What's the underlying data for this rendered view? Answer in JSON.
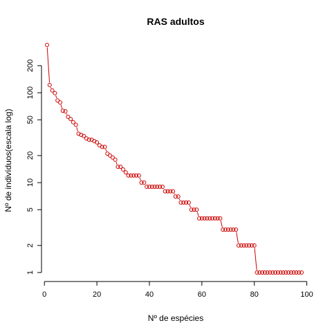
{
  "chart_data": {
    "type": "scatter",
    "title": "RAS adultos",
    "xlabel": "Nº de espécies",
    "ylabel": "Nº de indivíduos(escala log)",
    "x_scale": "linear",
    "y_scale": "log",
    "xlim": [
      1,
      98
    ],
    "ylim": [
      1,
      340
    ],
    "x_ticks": [
      0,
      20,
      40,
      60,
      80,
      100
    ],
    "y_ticks": [
      1,
      2,
      5,
      10,
      20,
      50,
      100,
      200
    ],
    "point_color": "#cc0000",
    "line_color": "#cc0000",
    "marker": "open circle",
    "connected_by_line": true,
    "box": false,
    "grid": false,
    "series": [
      {
        "values": [
          340,
          122,
          106,
          99,
          82,
          78,
          63,
          62,
          54,
          51,
          47,
          44,
          35,
          34,
          33,
          31,
          30,
          30,
          29,
          28,
          26,
          25,
          25,
          21,
          20,
          19,
          18,
          15,
          15,
          14,
          13,
          12,
          12,
          12,
          12,
          12,
          10,
          10,
          9,
          9,
          9,
          9,
          9,
          9,
          9,
          8,
          8,
          8,
          8,
          7,
          7,
          6,
          6,
          6,
          6,
          5,
          5,
          5,
          4,
          4,
          4,
          4,
          4,
          4,
          4,
          4,
          4,
          3,
          3,
          3,
          3,
          3,
          3,
          2,
          2,
          2,
          2,
          2,
          2,
          2,
          1,
          1,
          1,
          1,
          1,
          1,
          1,
          1,
          1,
          1,
          1,
          1,
          1,
          1,
          1,
          1,
          1,
          1
        ]
      }
    ]
  }
}
